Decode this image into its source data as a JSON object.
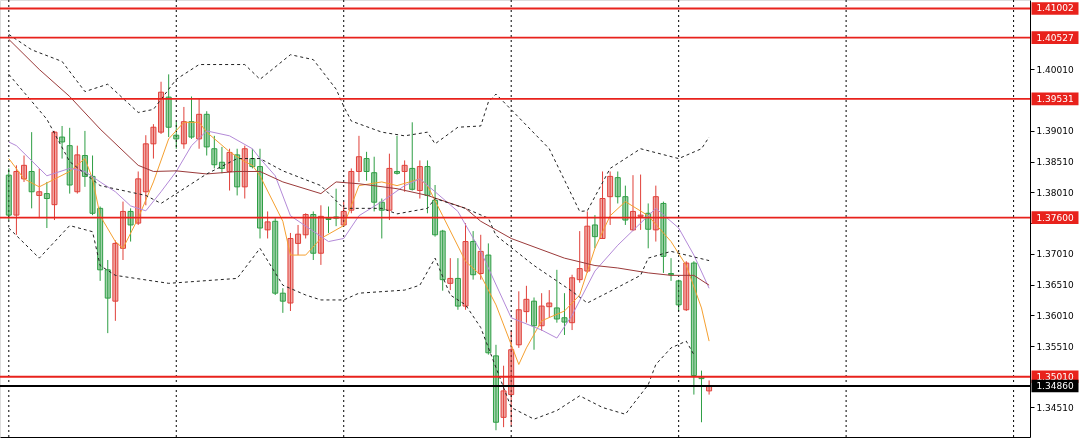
{
  "chart_data": {
    "type": "candlestick",
    "categories": [
      null,
      null,
      null,
      null,
      null,
      null,
      null,
      null,
      null,
      null,
      null,
      null,
      null,
      null,
      null,
      null,
      null,
      null,
      null,
      null,
      null,
      null,
      null,
      null,
      null,
      null,
      null,
      null,
      null,
      null,
      null,
      null,
      null,
      null,
      null,
      null,
      null,
      null,
      null,
      null,
      null,
      null,
      null,
      null,
      null,
      null,
      null,
      null,
      null,
      null,
      null,
      null,
      null,
      null,
      null,
      null,
      null,
      null,
      null,
      null,
      null,
      null,
      null,
      null,
      null,
      null,
      null,
      null,
      null,
      null,
      null,
      null,
      null,
      null,
      null,
      null,
      null,
      null,
      null,
      null,
      null,
      null,
      null,
      null,
      null,
      null,
      null,
      null,
      null,
      null,
      null,
      null,
      null,
      null,
      null,
      null,
      null,
      null,
      null,
      null,
      null,
      null,
      null,
      null,
      null,
      null,
      null,
      null,
      null,
      null,
      null,
      null,
      null,
      null,
      null,
      null,
      null,
      null,
      null,
      null,
      null,
      null,
      null,
      null,
      null,
      null,
      null,
      null,
      null,
      null,
      null,
      null,
      null,
      null
    ],
    "ohlc": [
      [
        1.3829,
        1.384,
        1.3756,
        1.3764
      ],
      [
        1.3764,
        1.3845,
        1.3732,
        1.3835
      ],
      [
        1.3823,
        1.3861,
        1.3818,
        1.3845
      ],
      [
        1.3835,
        1.3899,
        1.3775,
        1.3802
      ],
      [
        1.3796,
        1.384,
        1.3759,
        1.3802
      ],
      [
        1.3799,
        1.3818,
        1.3743,
        1.3791
      ],
      [
        1.3781,
        1.3901,
        1.3756,
        1.3899
      ],
      [
        1.3891,
        1.3909,
        1.3856,
        1.3883
      ],
      [
        1.3877,
        1.3906,
        1.3799,
        1.3813
      ],
      [
        1.3802,
        1.3877,
        1.3799,
        1.3862
      ],
      [
        1.3861,
        1.3901,
        1.381,
        1.3827
      ],
      [
        1.3827,
        1.3861,
        1.3764,
        1.3767
      ],
      [
        1.3775,
        1.3778,
        1.3657,
        1.3675
      ],
      [
        1.3675,
        1.3691,
        1.3572,
        1.3629
      ],
      [
        1.3624,
        1.3723,
        1.3592,
        1.3718
      ],
      [
        1.371,
        1.3786,
        1.3691,
        1.377
      ],
      [
        1.377,
        1.3775,
        1.3721,
        1.3748
      ],
      [
        1.3751,
        1.3835,
        1.3748,
        1.3823
      ],
      [
        1.3802,
        1.3894,
        1.378,
        1.388
      ],
      [
        1.388,
        1.3912,
        1.3856,
        1.3907
      ],
      [
        1.3899,
        1.3981,
        1.3896,
        1.3964
      ],
      [
        1.3956,
        1.3993,
        1.3891,
        1.3907
      ],
      [
        1.3894,
        1.3916,
        1.3872,
        1.3888
      ],
      [
        1.388,
        1.394,
        1.3872,
        1.3916
      ],
      [
        1.3916,
        1.3957,
        1.3888,
        1.3891
      ],
      [
        1.3888,
        1.3953,
        1.3872,
        1.3928
      ],
      [
        1.3928,
        1.3933,
        1.3861,
        1.3875
      ],
      [
        1.3872,
        1.3893,
        1.384,
        1.3846
      ],
      [
        1.385,
        1.3875,
        1.3832,
        1.384
      ],
      [
        1.3835,
        1.3872,
        1.3804,
        1.3866
      ],
      [
        1.3862,
        1.3872,
        1.3796,
        1.381
      ],
      [
        1.381,
        1.3877,
        1.3791,
        1.3872
      ],
      [
        1.3856,
        1.3872,
        1.384,
        1.3843
      ],
      [
        1.3843,
        1.3872,
        1.3726,
        1.3743
      ],
      [
        1.374,
        1.377,
        1.3726,
        1.3753
      ],
      [
        1.3754,
        1.3759,
        1.3634,
        1.3637
      ],
      [
        1.3637,
        1.3645,
        1.3605,
        1.3624
      ],
      [
        1.3621,
        1.3735,
        1.3608,
        1.3726
      ],
      [
        1.3718,
        1.3748,
        1.3699,
        1.3733
      ],
      [
        1.3732,
        1.3767,
        1.3726,
        1.3765
      ],
      [
        1.3765,
        1.377,
        1.3691,
        1.3702
      ],
      [
        1.3702,
        1.378,
        1.3683,
        1.3762
      ],
      [
        1.3759,
        1.3778,
        1.3735,
        1.3757
      ],
      [
        1.3761,
        1.3807,
        1.3746,
        1.3759
      ],
      [
        1.3748,
        1.3786,
        1.3746,
        1.377
      ],
      [
        1.3772,
        1.384,
        1.3767,
        1.3835
      ],
      [
        1.3835,
        1.3893,
        1.3818,
        1.3859
      ],
      [
        1.3856,
        1.3867,
        1.382,
        1.3835
      ],
      [
        1.3833,
        1.3859,
        1.377,
        1.3785
      ],
      [
        1.3785,
        1.3791,
        1.3726,
        1.3772
      ],
      [
        1.3772,
        1.3864,
        1.3756,
        1.384
      ],
      [
        1.3835,
        1.3893,
        1.383,
        1.3832
      ],
      [
        1.3835,
        1.3853,
        1.3802,
        1.3845
      ],
      [
        1.384,
        1.3915,
        1.3804,
        1.3806
      ],
      [
        1.3804,
        1.3853,
        1.3791,
        1.3843
      ],
      [
        1.3843,
        1.3853,
        1.3767,
        1.3796
      ],
      [
        1.3788,
        1.3813,
        1.3729,
        1.3732
      ],
      [
        1.3738,
        1.374,
        1.3641,
        1.3659
      ],
      [
        1.3653,
        1.3694,
        1.3642,
        1.3661
      ],
      [
        1.3661,
        1.3694,
        1.361,
        1.3616
      ],
      [
        1.3616,
        1.3751,
        1.361,
        1.3721
      ],
      [
        1.3721,
        1.3738,
        1.3659,
        1.3667
      ],
      [
        1.3669,
        1.3732,
        1.3659,
        1.3705
      ],
      [
        1.3699,
        1.3718,
        1.3537,
        1.354
      ],
      [
        1.3535,
        1.3553,
        1.3414,
        1.3427
      ],
      [
        1.3435,
        1.3519,
        1.3419,
        1.3478
      ],
      [
        1.3472,
        1.3576,
        1.3422,
        1.3545
      ],
      [
        1.3553,
        1.364,
        1.3548,
        1.361
      ],
      [
        1.3607,
        1.3649,
        1.3589,
        1.3627
      ],
      [
        1.3624,
        1.363,
        1.3545,
        1.3584
      ],
      [
        1.3584,
        1.3637,
        1.3576,
        1.3616
      ],
      [
        1.3615,
        1.3642,
        1.3597,
        1.3621
      ],
      [
        1.3613,
        1.3675,
        1.3589,
        1.3595
      ],
      [
        1.3597,
        1.3637,
        1.3569,
        1.359
      ],
      [
        1.3589,
        1.3667,
        1.3577,
        1.3662
      ],
      [
        1.3659,
        1.3738,
        1.3654,
        1.3677
      ],
      [
        1.3673,
        1.377,
        1.367,
        1.3746
      ],
      [
        1.3748,
        1.3764,
        1.371,
        1.3729
      ],
      [
        1.3726,
        1.3835,
        1.3726,
        1.3791
      ],
      [
        1.3794,
        1.3835,
        1.3748,
        1.3827
      ],
      [
        1.3825,
        1.3835,
        1.3783,
        1.3794
      ],
      [
        1.3794,
        1.3812,
        1.3748,
        1.3756
      ],
      [
        1.374,
        1.3829,
        1.3738,
        1.377
      ],
      [
        1.3762,
        1.383,
        1.374,
        1.3764
      ],
      [
        1.3767,
        1.3783,
        1.371,
        1.3741
      ],
      [
        1.374,
        1.3812,
        1.3721,
        1.3794
      ],
      [
        1.3783,
        1.3786,
        1.367,
        1.3697
      ],
      [
        1.3669,
        1.3694,
        1.3657,
        1.3667
      ],
      [
        1.3657,
        1.3659,
        1.3608,
        1.3618
      ],
      [
        1.361,
        1.3689,
        1.3608,
        1.3686
      ],
      [
        1.3686,
        1.3689,
        1.3472,
        1.3503
      ],
      [
        1.3501,
        1.3511,
        1.3427,
        1.3498
      ],
      [
        1.3478,
        1.3495,
        1.3472,
        1.3486
      ],
      null,
      null,
      null,
      null,
      null,
      null,
      null,
      null,
      null,
      null,
      null,
      null,
      null,
      null,
      null,
      null,
      null,
      null,
      null,
      null,
      null,
      null,
      null,
      null,
      null,
      null,
      null,
      null,
      null,
      null,
      null,
      null,
      null,
      null,
      null,
      null,
      null,
      null,
      null,
      null,
      null
    ],
    "colors": [
      "#2e9e44",
      "#e0403a",
      "#e0403a",
      "#2e9e44",
      "#e0403a",
      "#2e9e44",
      "#e0403a",
      "#2e9e44",
      "#2e9e44",
      "#e0403a",
      "#2e9e44",
      "#2e9e44",
      "#2e9e44",
      "#2e9e44",
      "#e0403a",
      "#e0403a",
      "#2e9e44",
      "#e0403a",
      "#e0403a",
      "#e0403a",
      "#e0403a",
      "#2e9e44",
      "#2e9e44",
      "#e0403a",
      "#2e9e44",
      "#e0403a",
      "#2e9e44",
      "#2e9e44",
      "#2e9e44",
      "#e0403a",
      "#2e9e44",
      "#e0403a",
      "#2e9e44",
      "#2e9e44",
      "#e0403a",
      "#2e9e44",
      "#2e9e44",
      "#e0403a",
      "#e0403a",
      "#e0403a",
      "#2e9e44",
      "#e0403a",
      "#2e9e44",
      "#2e9e44",
      "#e0403a",
      "#e0403a",
      "#e0403a",
      "#2e9e44",
      "#2e9e44",
      "#2e9e44",
      "#e0403a",
      "#2e9e44",
      "#e0403a",
      "#2e9e44",
      "#e0403a",
      "#2e9e44",
      "#2e9e44",
      "#2e9e44",
      "#e0403a",
      "#2e9e44",
      "#e0403a",
      "#2e9e44",
      "#e0403a",
      "#2e9e44",
      "#2e9e44",
      "#e0403a",
      "#e0403a",
      "#e0403a",
      "#e0403a",
      "#2e9e44",
      "#e0403a",
      "#e0403a",
      "#2e9e44",
      "#2e9e44",
      "#e0403a",
      "#e0403a",
      "#e0403a",
      "#2e9e44",
      "#e0403a",
      "#e0403a",
      "#2e9e44",
      "#2e9e44",
      "#e0403a",
      "#e0403a",
      "#2e9e44",
      "#e0403a",
      "#2e9e44",
      "#2e9e44",
      "#2e9e44",
      "#e0403a",
      "#2e9e44",
      "#2e9e44",
      "#e0403a",
      null,
      null,
      null,
      null,
      null,
      null,
      null,
      null,
      null,
      null,
      null,
      null,
      null,
      null,
      null,
      null,
      null,
      null,
      null,
      null,
      null,
      null,
      null,
      null,
      null,
      null,
      null,
      null,
      null,
      null,
      null,
      null,
      null,
      null,
      null,
      null,
      null,
      null,
      null,
      null,
      null
    ],
    "series": [
      {
        "type": "line",
        "color": "#f5a030",
        "values": [
          1.3856,
          null,
          1.3823,
          null,
          1.381,
          null,
          null,
          null,
          1.3835,
          null,
          1.3856,
          1.3823,
          1.3763,
          null,
          1.3721,
          1.371,
          null,
          1.3759,
          null,
          1.3818,
          null,
          1.3888,
          null,
          1.3915,
          null,
          1.3915,
          1.3899,
          null,
          null,
          1.3867,
          null,
          1.3851,
          1.3845,
          1.3828,
          null,
          null,
          1.3754,
          1.3699,
          null,
          1.3699,
          null,
          1.3726,
          null,
          null,
          1.3747,
          null,
          1.3812,
          null,
          null,
          1.3818,
          null,
          1.3812,
          null,
          null,
          1.3823,
          1.3812,
          null,
          1.3763,
          null,
          null,
          1.3689,
          null,
          1.3666,
          null,
          1.3618,
          null,
          null,
          1.3521,
          1.3548,
          null,
          1.3592,
          null,
          null,
          1.3608,
          null,
          1.3634,
          null,
          1.371,
          null,
          1.3763,
          null,
          1.3786,
          null,
          null,
          1.3763,
          null,
          null,
          1.3721,
          null,
          1.3682,
          null,
          1.3613,
          1.3559,
          null,
          null,
          null,
          null,
          null,
          null,
          null,
          null,
          null,
          null,
          null,
          null,
          null,
          null,
          null,
          null,
          null,
          null,
          null,
          null,
          null,
          null,
          null,
          null,
          null,
          null,
          null,
          null,
          null,
          null,
          null,
          null,
          null,
          null,
          null,
          null,
          null,
          null,
          null,
          null,
          null
        ]
      },
      {
        "type": "line",
        "color": "#b48ad8",
        "values": [
          1.3883,
          1.3877,
          null,
          null,
          null,
          1.3828,
          null,
          null,
          1.384,
          null,
          1.3835,
          null,
          1.3818,
          null,
          1.3802,
          null,
          1.3779,
          null,
          1.3771,
          null,
          1.3802,
          null,
          1.3835,
          null,
          1.3877,
          null,
          1.3901,
          null,
          null,
          1.3893,
          null,
          null,
          1.3872,
          1.3856,
          null,
          1.3828,
          null,
          1.3763,
          null,
          null,
          null,
          null,
          1.3721,
          null,
          1.3726,
          null,
          1.3763,
          null,
          null,
          1.3786,
          null,
          null,
          1.3812,
          null,
          1.3823,
          null,
          1.3802,
          null,
          null,
          1.377,
          null,
          null,
          1.3705,
          null,
          null,
          null,
          1.3597,
          null,
          null,
          null,
          1.3577,
          null,
          1.3564,
          null,
          1.3601,
          null,
          null,
          1.3673,
          null,
          null,
          1.3715,
          null,
          null,
          null,
          null,
          1.3775,
          null,
          null,
          1.3743,
          null,
          1.3699,
          null,
          1.3645,
          null,
          null,
          null,
          null,
          null,
          null,
          null,
          null,
          null,
          null,
          null,
          null,
          null,
          null,
          null,
          null,
          null,
          null,
          null,
          null,
          null,
          null,
          null,
          null,
          null,
          null,
          null,
          null,
          null,
          null,
          null,
          null,
          null,
          null,
          null,
          null,
          null,
          null,
          null,
          null,
          null
        ]
      },
      {
        "type": "line",
        "color": "#9b3a3a",
        "values": [
          1.405,
          null,
          null,
          null,
          1.4001,
          null,
          null,
          null,
          1.3957,
          null,
          null,
          null,
          1.3904,
          null,
          null,
          null,
          null,
          1.3845,
          null,
          1.3835,
          null,
          null,
          1.3836,
          null,
          null,
          null,
          1.3831,
          null,
          null,
          null,
          1.3835,
          null,
          null,
          1.3835,
          null,
          null,
          1.3818,
          null,
          null,
          null,
          null,
          1.3799,
          null,
          1.3818,
          null,
          null,
          1.3815,
          null,
          null,
          null,
          null,
          1.3807,
          null,
          null,
          null,
          1.3796,
          null,
          null,
          null,
          null,
          1.3775,
          null,
          1.3754,
          null,
          null,
          null,
          1.3726,
          null,
          null,
          null,
          null,
          null,
          null,
          1.3694,
          null,
          null,
          null,
          1.3682,
          null,
          null,
          1.3678,
          null,
          null,
          null,
          1.367,
          null,
          null,
          1.3666,
          null,
          null,
          1.3666,
          null,
          1.365,
          null,
          null,
          null,
          null,
          null,
          null,
          null,
          null,
          null,
          null,
          null,
          null,
          null,
          null,
          null,
          null,
          null,
          null,
          null,
          null,
          null,
          null,
          null,
          null,
          null,
          null,
          null,
          null,
          null,
          null,
          null,
          null,
          null,
          null,
          null,
          null,
          null,
          null,
          null,
          null,
          null
        ]
      },
      {
        "type": "line",
        "color": "#222222",
        "line_style": "dashed",
        "values": [
          1.4058,
          null,
          null,
          1.4033,
          null,
          null,
          null,
          1.4014,
          null,
          null,
          1.3965,
          null,
          null,
          1.3977,
          null,
          null,
          null,
          1.3931,
          null,
          1.3936,
          null,
          null,
          1.3985,
          null,
          null,
          1.4009,
          null,
          null,
          null,
          null,
          null,
          1.4009,
          null,
          1.3985,
          null,
          null,
          null,
          1.4025,
          null,
          null,
          1.4017,
          null,
          null,
          1.3969,
          1.3941,
          1.3917,
          null,
          null,
          null,
          1.3899,
          null,
          null,
          1.3893,
          null,
          null,
          1.3899,
          1.388,
          null,
          null,
          1.3907,
          null,
          null,
          1.3909,
          1.3948,
          1.3961,
          null,
          null,
          null,
          null,
          null,
          null,
          1.3872,
          null,
          null,
          null,
          1.377,
          1.3771,
          null,
          null,
          1.384,
          null,
          null,
          null,
          1.3872,
          null,
          null,
          null,
          null,
          1.3856,
          null,
          null,
          1.3872,
          1.3891,
          null,
          null,
          null,
          null,
          null,
          null,
          null,
          null,
          null,
          null,
          null,
          null,
          null,
          null,
          null,
          null,
          null,
          null,
          null,
          null,
          null,
          null,
          null,
          null,
          null,
          null,
          null,
          null,
          null,
          null,
          null,
          null,
          null,
          null,
          null,
          null,
          null,
          null,
          null,
          null,
          null
        ]
      },
      {
        "type": "line",
        "color": "#222222",
        "line_style": "dashed",
        "values": [
          1.3993,
          null,
          null,
          null,
          null,
          1.392,
          null,
          null,
          1.3851,
          null,
          null,
          null,
          1.3812,
          null,
          null,
          null,
          null,
          null,
          1.3796,
          null,
          1.3783,
          null,
          1.3799,
          null,
          null,
          null,
          1.3831,
          null,
          null,
          null,
          1.3856,
          null,
          null,
          1.3856,
          null,
          null,
          1.3836,
          null,
          null,
          null,
          null,
          1.3812,
          null,
          null,
          1.3775,
          null,
          null,
          null,
          null,
          1.3775,
          null,
          1.3766,
          null,
          null,
          null,
          1.3775,
          1.3791,
          null,
          null,
          null,
          1.3775,
          null,
          null,
          1.3759,
          1.3731,
          null,
          null,
          null,
          null,
          1.3682,
          null,
          null,
          null,
          null,
          1.364,
          null,
          1.3621,
          null,
          null,
          1.364,
          null,
          null,
          null,
          1.3666,
          1.3694,
          null,
          null,
          1.3705,
          null,
          null,
          null,
          null,
          1.369,
          null,
          null,
          null,
          null,
          null,
          null,
          null,
          null,
          null,
          null,
          null,
          null,
          null,
          null,
          null,
          null,
          null,
          null,
          null,
          null,
          null,
          null,
          null,
          null,
          null,
          null,
          null,
          null,
          null,
          null,
          null,
          null,
          null,
          null,
          null,
          null,
          null,
          null,
          null,
          null,
          null
        ]
      },
      {
        "type": "line",
        "color": "#222222",
        "line_style": "dashed",
        "values": [
          1.3743,
          null,
          null,
          null,
          1.3694,
          null,
          null,
          null,
          1.3747,
          null,
          null,
          1.3737,
          1.3682,
          null,
          1.3666,
          null,
          null,
          null,
          null,
          null,
          null,
          1.3653,
          null,
          null,
          null,
          null,
          null,
          null,
          null,
          null,
          1.3661,
          null,
          null,
          1.371,
          null,
          null,
          1.365,
          null,
          null,
          1.3634,
          null,
          1.3626,
          null,
          null,
          1.3626,
          null,
          1.3637,
          null,
          null,
          null,
          null,
          null,
          1.3642,
          null,
          1.365,
          null,
          1.3694,
          null,
          1.3634,
          null,
          1.3618,
          null,
          1.3581,
          null,
          null,
          null,
          1.3451,
          null,
          null,
          1.3432,
          null,
          null,
          1.3446,
          null,
          null,
          1.347,
          null,
          null,
          1.3451,
          null,
          null,
          1.344,
          null,
          null,
          1.3488,
          1.3521,
          null,
          1.3548,
          null,
          1.3559,
          1.3537,
          null,
          null,
          null,
          null,
          null,
          null,
          null,
          null,
          null,
          null,
          null,
          null,
          null,
          null,
          null,
          null,
          null,
          null,
          null,
          null,
          null,
          null,
          null,
          null,
          null,
          null,
          null,
          null,
          null,
          null,
          null,
          null,
          null,
          null,
          null,
          null,
          null,
          null,
          null,
          null,
          null,
          null,
          null
        ]
      }
    ],
    "ylim": [
      1.3403,
      1.4114
    ],
    "yticks": [
      {
        "value": 1.4001,
        "label": "1.40010"
      },
      {
        "value": 1.3901,
        "label": "1.39010"
      },
      {
        "value": 1.3851,
        "label": "1.38510"
      },
      {
        "value": 1.3801,
        "label": "1.38010"
      },
      {
        "value": 1.3751,
        "label": null
      },
      {
        "value": 1.3701,
        "label": "1.37010"
      },
      {
        "value": 1.3651,
        "label": "1.36510"
      },
      {
        "value": 1.3601,
        "label": "1.36010"
      },
      {
        "value": 1.3551,
        "label": "1.35510"
      },
      {
        "value": 1.3451,
        "label": "1.34510"
      }
    ],
    "ref_lines": [
      {
        "axis": "y",
        "value": 1.41002,
        "label": "1.41002",
        "color": "#e8221c"
      },
      {
        "axis": "y",
        "value": 1.40527,
        "label": "1.40527",
        "color": "#e8221c"
      },
      {
        "axis": "y",
        "value": 1.39531,
        "label": "1.39531",
        "color": "#e8221c"
      },
      {
        "axis": "y",
        "value": 1.376,
        "label": "1.37600",
        "color": "#e8221c"
      },
      {
        "axis": "y",
        "value": 1.3501,
        "label": "1.35010",
        "color": "#e8221c"
      },
      {
        "axis": "y",
        "value": 1.3486,
        "label": "1.34860",
        "color": "#000000"
      }
    ],
    "tick_labels": "y"
  }
}
